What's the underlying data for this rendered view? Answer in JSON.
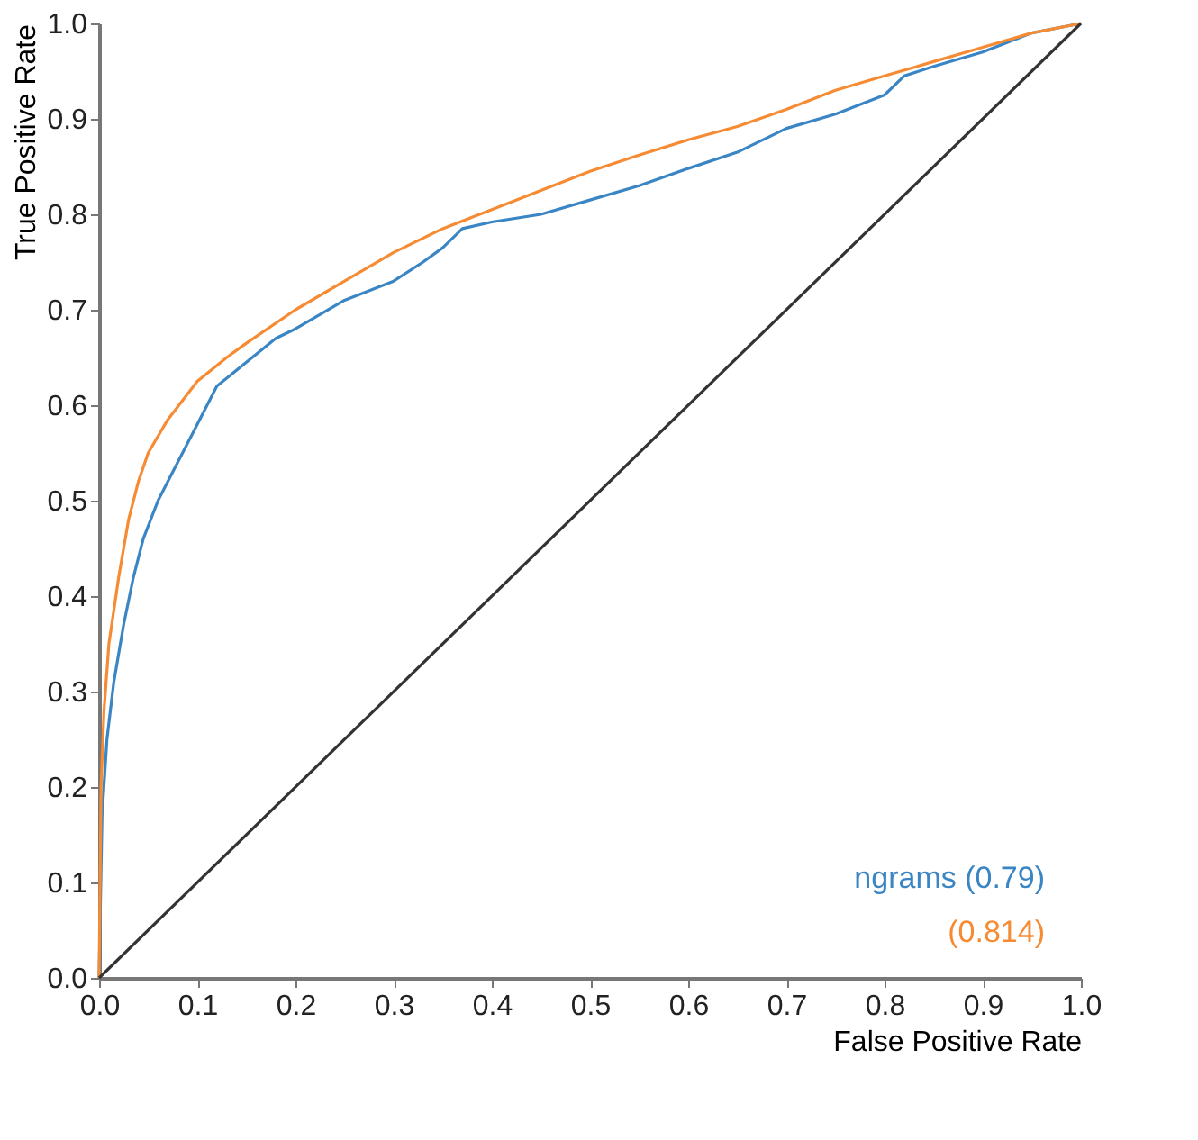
{
  "chart_data": {
    "type": "line",
    "xlabel": "False Positive Rate",
    "ylabel": "True Positive Rate",
    "xlim": [
      0,
      1
    ],
    "ylim": [
      0,
      1
    ],
    "xticks": [
      {
        "value": 0,
        "label": "0.0"
      },
      0.1,
      0.2,
      0.3,
      0.4,
      0.5,
      0.6,
      0.7,
      0.8,
      0.9,
      {
        "value": 1,
        "label": "1.0"
      }
    ],
    "yticks": [
      {
        "value": 0,
        "label": "0.0"
      },
      0.1,
      0.2,
      0.3,
      0.4,
      0.5,
      0.6,
      0.7,
      0.8,
      0.9,
      {
        "value": 1,
        "label": "1.0"
      }
    ],
    "grid": false,
    "legend": "bottom right",
    "marker": "none",
    "line_style": "solid",
    "series": [
      {
        "name": "ngrams (0.79)",
        "color": "#3a85c4",
        "x": [
          0,
          0.003,
          0.008,
          0.015,
          0.025,
          0.035,
          0.045,
          0.06,
          0.08,
          0.1,
          0.12,
          0.15,
          0.18,
          0.2,
          0.25,
          0.3,
          0.33,
          0.35,
          0.37,
          0.4,
          0.45,
          0.5,
          0.55,
          0.6,
          0.65,
          0.7,
          0.75,
          0.8,
          0.82,
          0.85,
          0.9,
          0.95,
          1
        ],
        "values": [
          0,
          0.17,
          0.25,
          0.31,
          0.37,
          0.42,
          0.46,
          0.5,
          0.54,
          0.58,
          0.62,
          0.645,
          0.67,
          0.68,
          0.71,
          0.73,
          0.75,
          0.765,
          0.785,
          0.792,
          0.8,
          0.815,
          0.83,
          0.848,
          0.865,
          0.89,
          0.905,
          0.925,
          0.945,
          0.955,
          0.97,
          0.99,
          1
        ]
      },
      {
        "name": "(0.814)",
        "color": "#f68b33",
        "x": [
          0,
          0.002,
          0.005,
          0.01,
          0.02,
          0.03,
          0.04,
          0.05,
          0.07,
          0.1,
          0.13,
          0.15,
          0.2,
          0.25,
          0.3,
          0.35,
          0.4,
          0.45,
          0.5,
          0.55,
          0.6,
          0.65,
          0.7,
          0.75,
          0.8,
          0.85,
          0.9,
          0.95,
          1
        ],
        "values": [
          0,
          0.2,
          0.28,
          0.35,
          0.42,
          0.48,
          0.52,
          0.55,
          0.585,
          0.625,
          0.65,
          0.665,
          0.7,
          0.73,
          0.76,
          0.785,
          0.805,
          0.825,
          0.845,
          0.862,
          0.878,
          0.892,
          0.91,
          0.93,
          0.945,
          0.96,
          0.975,
          0.99,
          1
        ]
      },
      {
        "color": "#333333",
        "x": [
          0,
          1
        ],
        "values": [
          0,
          1
        ]
      }
    ]
  }
}
